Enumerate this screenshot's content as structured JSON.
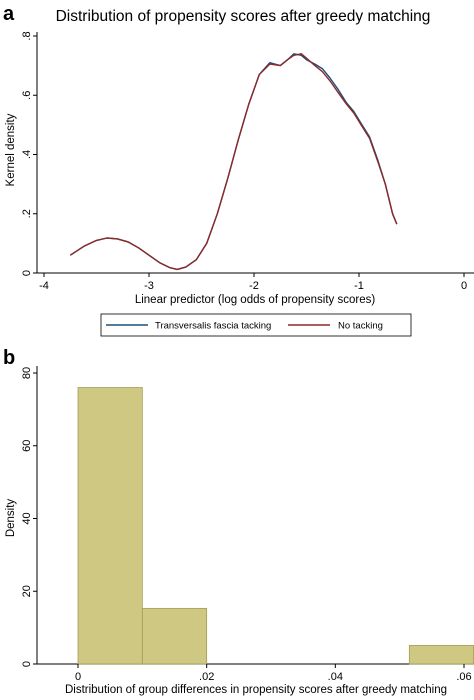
{
  "panel_a": {
    "letter": "a"
  },
  "panel_b": {
    "letter": "b"
  },
  "chart_data": [
    {
      "type": "line",
      "title": "Distribution of propensity scores after greedy matching",
      "xlabel": "Linear predictor (log odds of propensity scores)",
      "ylabel": "Kernel density",
      "xlim": [
        -4,
        0
      ],
      "ylim": [
        0,
        0.8
      ],
      "xticks": [
        -4,
        -3,
        -2,
        -1,
        0
      ],
      "xtick_labels": [
        "-4",
        "-3",
        "-2",
        "-1",
        "0"
      ],
      "yticks": [
        0,
        0.2,
        0.4,
        0.6,
        0.8
      ],
      "ytick_labels": [
        "0",
        ".2",
        ".4",
        ".6",
        ".8"
      ],
      "legend_placement": "bottom",
      "series": [
        {
          "name": "Transversalis fascia tacking",
          "color": "#1f4e79",
          "x": [
            -3.75,
            -3.62,
            -3.5,
            -3.4,
            -3.3,
            -3.2,
            -3.1,
            -3.0,
            -2.9,
            -2.8,
            -2.73,
            -2.65,
            -2.55,
            -2.45,
            -2.35,
            -2.25,
            -2.15,
            -2.05,
            -1.95,
            -1.85,
            -1.75,
            -1.68,
            -1.62,
            -1.55,
            -1.5,
            -1.42,
            -1.35,
            -1.28,
            -1.2,
            -1.12,
            -1.05,
            -0.98,
            -0.9,
            -0.82,
            -0.75,
            -0.68,
            -0.64
          ],
          "y": [
            0.06,
            0.09,
            0.11,
            0.118,
            0.115,
            0.105,
            0.085,
            0.06,
            0.035,
            0.018,
            0.012,
            0.02,
            0.045,
            0.1,
            0.2,
            0.32,
            0.45,
            0.57,
            0.67,
            0.71,
            0.7,
            0.72,
            0.74,
            0.735,
            0.72,
            0.705,
            0.69,
            0.66,
            0.62,
            0.575,
            0.545,
            0.505,
            0.46,
            0.38,
            0.3,
            0.2,
            0.165
          ]
        },
        {
          "name": "No tacking",
          "color": "#8b2a2a",
          "x": [
            -3.75,
            -3.62,
            -3.5,
            -3.4,
            -3.3,
            -3.2,
            -3.1,
            -3.0,
            -2.9,
            -2.8,
            -2.73,
            -2.65,
            -2.55,
            -2.45,
            -2.35,
            -2.25,
            -2.15,
            -2.05,
            -1.95,
            -1.85,
            -1.75,
            -1.68,
            -1.62,
            -1.55,
            -1.5,
            -1.42,
            -1.35,
            -1.28,
            -1.2,
            -1.12,
            -1.05,
            -0.98,
            -0.9,
            -0.82,
            -0.75,
            -0.68,
            -0.64
          ],
          "y": [
            0.06,
            0.09,
            0.11,
            0.118,
            0.115,
            0.105,
            0.085,
            0.06,
            0.035,
            0.018,
            0.012,
            0.02,
            0.045,
            0.1,
            0.2,
            0.32,
            0.45,
            0.57,
            0.67,
            0.705,
            0.7,
            0.72,
            0.735,
            0.74,
            0.725,
            0.7,
            0.68,
            0.65,
            0.61,
            0.57,
            0.54,
            0.5,
            0.455,
            0.375,
            0.3,
            0.2,
            0.165
          ]
        }
      ]
    },
    {
      "type": "bar",
      "title": "",
      "xlabel": "Distribution of group differences in propensity scores after greedy matching",
      "ylabel": "Density",
      "xlim": [
        -0.012,
        0.062
      ],
      "ylim": [
        0,
        80
      ],
      "xticks": [
        0,
        0.02,
        0.04,
        0.06
      ],
      "xtick_labels": [
        "0",
        ".02",
        ".04",
        ".06"
      ],
      "yticks": [
        0,
        20,
        40,
        60,
        80
      ],
      "ytick_labels": [
        "0",
        "20",
        "40",
        "60",
        "80"
      ],
      "bar_color": "#cfc882",
      "bar_edge_color": "#a39c55",
      "bins": [
        {
          "x0": 0.0,
          "x1": 0.01,
          "value": 76
        },
        {
          "x0": 0.01,
          "x1": 0.02,
          "value": 15.3
        },
        {
          "x0": 0.0515,
          "x1": 0.0615,
          "value": 5.1
        }
      ]
    }
  ]
}
